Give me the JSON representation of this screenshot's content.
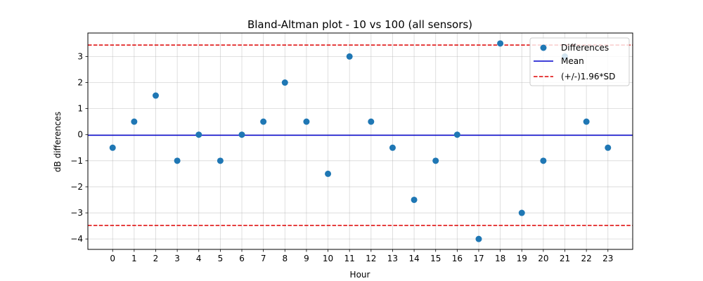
{
  "chart_data": {
    "type": "scatter",
    "title": "Bland-Altman plot - 10 vs 100 (all sensors)",
    "xlabel": "Hour",
    "ylabel": "dB differences",
    "xlim": [
      -1.15,
      24.15
    ],
    "ylim": [
      -4.4,
      3.9
    ],
    "x_ticks": [
      0,
      1,
      2,
      3,
      4,
      5,
      6,
      7,
      8,
      9,
      10,
      11,
      12,
      13,
      14,
      15,
      16,
      17,
      18,
      19,
      20,
      21,
      22,
      23
    ],
    "y_ticks": [
      -4,
      -3,
      -2,
      -1,
      0,
      1,
      2,
      3
    ],
    "grid": true,
    "legend_position": "top-right",
    "series": [
      {
        "name": "Differences",
        "kind": "scatter",
        "color": "#1f77b4",
        "x": [
          0,
          1,
          2,
          3,
          4,
          5,
          6,
          7,
          8,
          9,
          10,
          11,
          12,
          13,
          14,
          15,
          16,
          17,
          18,
          19,
          20,
          21,
          22,
          23
        ],
        "y": [
          -0.5,
          0.5,
          1.5,
          -1,
          0,
          -1,
          0,
          0.5,
          2,
          0.5,
          -1.5,
          3,
          0.5,
          -0.5,
          -2.5,
          -1,
          0,
          -4,
          3.5,
          -3,
          -1,
          3,
          0.5,
          -0.5
        ]
      },
      {
        "name": "Mean",
        "kind": "hline",
        "color": "#0000cc",
        "style": "solid",
        "y": -0.02
      },
      {
        "name": "(+/-)1.96*SD",
        "kind": "hline",
        "color": "#dd0000",
        "style": "dashed",
        "y": [
          3.44,
          -3.48
        ]
      }
    ]
  }
}
